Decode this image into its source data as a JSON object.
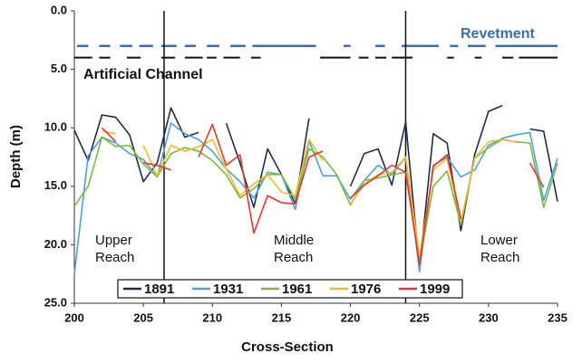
{
  "chart_data": {
    "type": "line",
    "x_label": "Cross-Section",
    "y_label": "Depth (m)",
    "xlim": [
      200,
      235
    ],
    "xticks": [
      200,
      205,
      210,
      215,
      220,
      225,
      230,
      235
    ],
    "ylim": [
      0,
      25
    ],
    "y_inverted": true,
    "yticks": [
      {
        "value": 0,
        "label": "0.0"
      },
      {
        "value": 5,
        "label": "5.0"
      },
      {
        "value": 10,
        "label": "10.0"
      },
      {
        "value": 15,
        "label": "15.0"
      },
      {
        "value": 20,
        "label": "20.0"
      },
      {
        "value": 25,
        "label": "25.0"
      }
    ],
    "grid": false,
    "legend": "bottom",
    "x": [
      200,
      201,
      202,
      203,
      204,
      205,
      206,
      207,
      208,
      209,
      210,
      211,
      212,
      213,
      214,
      215,
      216,
      217,
      218,
      219,
      220,
      221,
      222,
      223,
      224,
      225,
      226,
      227,
      228,
      229,
      230,
      231,
      232,
      233,
      234,
      235
    ],
    "series": [
      {
        "name": "1891",
        "color": "#1f2a4f",
        "values": [
          10.2,
          12.8,
          8.9,
          9.1,
          10.6,
          14.6,
          13.0,
          8.3,
          10.8,
          10.4,
          null,
          9.6,
          13.0,
          16.8,
          11.8,
          14.0,
          16.5,
          9.2,
          null,
          null,
          15.0,
          12.2,
          11.8,
          14.9,
          9.5,
          22.0,
          10.5,
          11.3,
          18.8,
          12.3,
          8.6,
          8.1,
          null,
          10.1,
          10.3,
          16.3
        ]
      },
      {
        "name": "1931",
        "color": "#4aa3df",
        "values": [
          22.5,
          12.4,
          10.8,
          11.3,
          12.2,
          12.7,
          14.2,
          9.6,
          10.5,
          11.0,
          12.0,
          13.5,
          14.6,
          16.0,
          13.8,
          14.0,
          17.0,
          11.1,
          14.1,
          14.1,
          16.1,
          14.5,
          13.2,
          14.0,
          12.5,
          22.3,
          13.2,
          12.5,
          14.2,
          13.6,
          11.5,
          10.9,
          10.6,
          10.4,
          16.2,
          12.6
        ]
      },
      {
        "name": "1961",
        "color": "#7dbb35",
        "values": [
          16.7,
          15.0,
          10.8,
          11.6,
          11.5,
          13.1,
          14.2,
          12.2,
          11.7,
          12.0,
          12.8,
          14.0,
          16.0,
          15.2,
          14.0,
          14.0,
          16.1,
          11.8,
          12.5,
          14.0,
          16.6,
          14.5,
          14.3,
          14.0,
          13.8,
          21.5,
          15.0,
          13.7,
          18.3,
          12.6,
          11.7,
          11.0,
          11.2,
          11.3,
          16.8,
          13.0
        ]
      },
      {
        "name": "1976",
        "color": "#f5b82e",
        "values": [
          null,
          null,
          10.3,
          10.5,
          null,
          11.5,
          14.1,
          11.5,
          12.0,
          11.6,
          11.0,
          13.5,
          15.8,
          14.8,
          14.0,
          15.5,
          15.8,
          11.0,
          12.8,
          null,
          16.5,
          14.8,
          14.0,
          13.8,
          12.5,
          21.0,
          13.6,
          12.6,
          18.0,
          12.6,
          11.2,
          11.0,
          11.2,
          null,
          15.0,
          null
        ]
      },
      {
        "name": "1999",
        "color": "#e8362b",
        "values": [
          null,
          null,
          10.0,
          11.2,
          null,
          13.0,
          13.2,
          13.6,
          null,
          12.5,
          9.7,
          13.2,
          12.3,
          19.0,
          15.8,
          16.4,
          16.5,
          12.5,
          12.0,
          null,
          16.0,
          14.9,
          14.1,
          13.2,
          13.8,
          21.7,
          13.3,
          12.3,
          17.8,
          null,
          null,
          null,
          null,
          13.0,
          15.1,
          null
        ]
      }
    ],
    "reach_boundaries": [
      206.5,
      224
    ],
    "reaches": [
      "Upper Reach",
      "Middle Reach",
      "Lower Reach"
    ],
    "revetment": {
      "name": "Revetment",
      "color": "#3a6fb0",
      "depth": 3,
      "segments": [
        [
          200.2,
          201
        ],
        [
          201.8,
          202.6
        ],
        [
          203.3,
          204.2
        ],
        [
          204.7,
          205.7
        ],
        [
          206.3,
          207.4
        ],
        [
          208,
          208.8
        ],
        [
          209.6,
          210.5
        ],
        [
          211.3,
          212.4
        ],
        [
          212.9,
          217.5
        ],
        [
          219.5,
          220
        ],
        [
          221.8,
          222.5
        ],
        [
          223.7,
          226.4
        ],
        [
          227.2,
          227.8
        ],
        [
          228.5,
          229.8
        ],
        [
          230.5,
          235
        ]
      ]
    },
    "artificial_channel": {
      "name": "Artificial Channel",
      "color": "#111111",
      "depth": 4,
      "segments": [
        [
          200,
          201.3
        ],
        [
          201.8,
          202.6
        ],
        [
          203.8,
          204.8
        ],
        [
          206.3,
          207.3
        ],
        [
          208,
          209.3
        ],
        [
          209.6,
          210.3
        ],
        [
          210.8,
          212
        ],
        [
          212.8,
          213.5
        ],
        [
          217.8,
          220
        ],
        [
          220.6,
          221.3
        ],
        [
          221.8,
          222.6
        ],
        [
          223,
          224.5
        ],
        [
          227,
          227.5
        ],
        [
          229,
          229.5
        ],
        [
          231,
          231.8
        ],
        [
          232.2,
          235
        ]
      ]
    }
  }
}
